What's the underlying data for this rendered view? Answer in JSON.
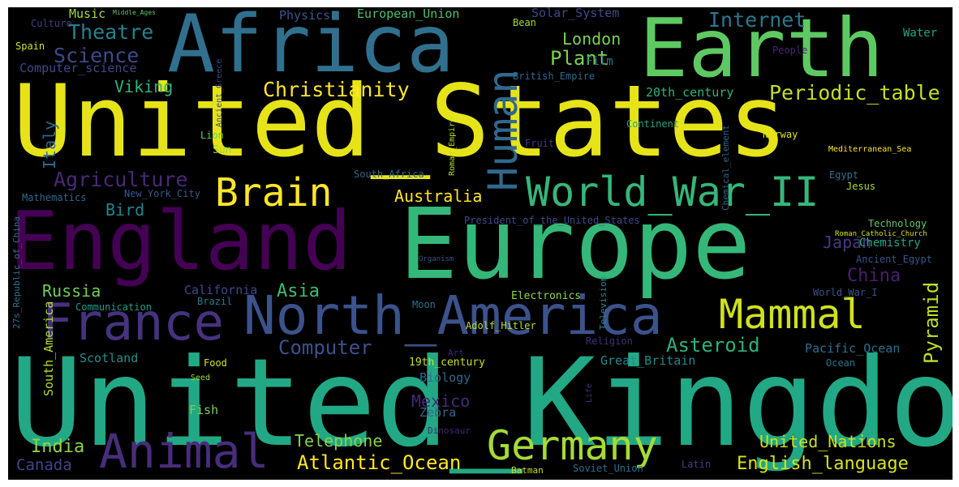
{
  "words": [
    {
      "text": "United_Kingdom",
      "color": "#22a884"
    },
    {
      "text": "United_States",
      "color": "#e6e419"
    },
    {
      "text": "Europe",
      "color": "#35b779"
    },
    {
      "text": "England",
      "color": "#440154"
    },
    {
      "text": "Earth",
      "color": "#5ec962"
    },
    {
      "text": "Africa",
      "color": "#30708e"
    },
    {
      "text": "North_America",
      "color": "#3b528b"
    },
    {
      "text": "France",
      "color": "#46327e"
    },
    {
      "text": "Animal",
      "color": "#472d7b"
    },
    {
      "text": "Germany",
      "color": "#a5db36"
    },
    {
      "text": "World_War_II",
      "color": "#35b779"
    },
    {
      "text": "Human",
      "color": "#31688e"
    },
    {
      "text": "Brain",
      "color": "#fde725"
    },
    {
      "text": "Mammal",
      "color": "#d0e11c"
    },
    {
      "text": "Christianity",
      "color": "#fde725"
    },
    {
      "text": "Agriculture",
      "color": "#482878"
    },
    {
      "text": "Theatre",
      "color": "#26828e"
    },
    {
      "text": "Science",
      "color": "#3e4989"
    },
    {
      "text": "Internet",
      "color": "#2a788e"
    },
    {
      "text": "Periodic_table",
      "color": "#c2df23"
    },
    {
      "text": "Plant",
      "color": "#7ad151"
    },
    {
      "text": "London",
      "color": "#7ad151"
    },
    {
      "text": "Viking",
      "color": "#2fb47c"
    },
    {
      "text": "Italy",
      "color": "#31688e"
    },
    {
      "text": "Australia",
      "color": "#fde725"
    },
    {
      "text": "Bird",
      "color": "#26828e"
    },
    {
      "text": "Russia",
      "color": "#6ece58"
    },
    {
      "text": "Asia",
      "color": "#3fbc73"
    },
    {
      "text": "China",
      "color": "#481f70"
    },
    {
      "text": "Japan",
      "color": "#443983"
    },
    {
      "text": "Asteroid",
      "color": "#2ab07f"
    },
    {
      "text": "Pyramid",
      "color": "#bddf26"
    },
    {
      "text": "Computer",
      "color": "#3b528b"
    },
    {
      "text": "Telephone",
      "color": "#84d44b"
    },
    {
      "text": "Atlantic_Ocean",
      "color": "#fde725"
    },
    {
      "text": "English_language",
      "color": "#d8e219"
    },
    {
      "text": "United_Nations",
      "color": "#c8e020"
    },
    {
      "text": "India",
      "color": "#8bd646"
    },
    {
      "text": "Canada",
      "color": "#414487"
    },
    {
      "text": "Mexico",
      "color": "#482878"
    },
    {
      "text": "Scotland",
      "color": "#21918c"
    },
    {
      "text": "Computer_science",
      "color": "#3e4989"
    },
    {
      "text": "Music",
      "color": "#a5db36"
    },
    {
      "text": "Culture",
      "color": "#433e85"
    },
    {
      "text": "Middle_Ages",
      "color": "#5ec962"
    },
    {
      "text": "Spain",
      "color": "#d2e21b"
    },
    {
      "text": "Physics",
      "color": "#39568c"
    },
    {
      "text": "European_Union",
      "color": "#4ac16d"
    },
    {
      "text": "Solar_System",
      "color": "#3e4a89"
    },
    {
      "text": "Bean",
      "color": "#a2da37"
    },
    {
      "text": "Water",
      "color": "#21a685"
    },
    {
      "text": "Film",
      "color": "#287c8e"
    },
    {
      "text": "People",
      "color": "#482475"
    },
    {
      "text": "British_Empire",
      "color": "#31688e"
    },
    {
      "text": "20th_century",
      "color": "#2eb37c"
    },
    {
      "text": "Ancient_Greece",
      "color": "#3e4989"
    },
    {
      "text": "Lion",
      "color": "#63cb5f"
    },
    {
      "text": "Sun",
      "color": "#93d741"
    },
    {
      "text": "Roman_Empire",
      "color": "#b5de2b"
    },
    {
      "text": "Continent",
      "color": "#21a685"
    },
    {
      "text": "Fruit",
      "color": "#443983"
    },
    {
      "text": "Chemical_element",
      "color": "#32658e"
    },
    {
      "text": "Norway",
      "color": "#dfe318"
    },
    {
      "text": "Mediterranean_Sea",
      "color": "#fde725"
    },
    {
      "text": "Egypt",
      "color": "#2d708e"
    },
    {
      "text": "Jesus",
      "color": "#a8db34"
    },
    {
      "text": "South_Africa",
      "color": "#31688e"
    },
    {
      "text": "New_York_City",
      "color": "#39568c"
    },
    {
      "text": "Mathematics",
      "color": "#30688e"
    },
    {
      "text": "27s_Republic_of_China",
      "color": "#2c738e"
    },
    {
      "text": "President_of_the_United_States",
      "color": "#3e4989"
    },
    {
      "text": "Technology",
      "color": "#5ec962"
    },
    {
      "text": "Roman_Catholic_Church",
      "color": "#d2e21b"
    },
    {
      "text": "Chemistry",
      "color": "#21a685"
    },
    {
      "text": "Ancient_Egypt",
      "color": "#3b528b"
    },
    {
      "text": "Organism",
      "color": "#3b528b"
    },
    {
      "text": "California",
      "color": "#3e4989"
    },
    {
      "text": "Brazil",
      "color": "#2a788e"
    },
    {
      "text": "Communication",
      "color": "#1f9e89"
    },
    {
      "text": "South_America",
      "color": "#b5de2b"
    },
    {
      "text": "Moon",
      "color": "#2c728e"
    },
    {
      "text": "Electronics",
      "color": "#90d743"
    },
    {
      "text": "Television",
      "color": "#24868e"
    },
    {
      "text": "World_War_I",
      "color": "#3b528b"
    },
    {
      "text": "Adolf_Hitler",
      "color": "#bddf26"
    },
    {
      "text": "Religion",
      "color": "#472c7a"
    },
    {
      "text": "Art",
      "color": "#482475"
    },
    {
      "text": "Great_Britain",
      "color": "#23898e"
    },
    {
      "text": "Pacific_Ocean",
      "color": "#2d708e"
    },
    {
      "text": "Ocean",
      "color": "#2c738e"
    },
    {
      "text": "19th_century",
      "color": "#c8e020"
    },
    {
      "text": "Biology",
      "color": "#31688e"
    },
    {
      "text": "Food",
      "color": "#d8e219"
    },
    {
      "text": "Seed",
      "color": "#a2da37"
    },
    {
      "text": "Fish",
      "color": "#7ad151"
    },
    {
      "text": "Zebra",
      "color": "#31688e"
    },
    {
      "text": "Life",
      "color": "#472c7a"
    },
    {
      "text": "Dinosaur",
      "color": "#482475"
    },
    {
      "text": "Batman",
      "color": "#c2df23"
    },
    {
      "text": "Soviet_Union",
      "color": "#2d708e"
    },
    {
      "text": "Latin",
      "color": "#433e85"
    }
  ]
}
